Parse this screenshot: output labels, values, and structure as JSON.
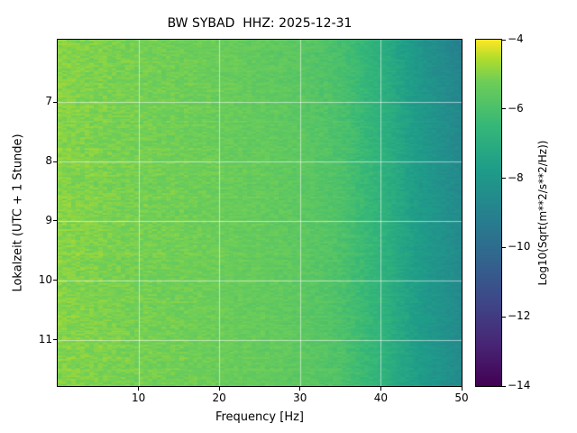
{
  "chart_data": {
    "type": "heatmap",
    "title": "BW SYBAD  HHZ: 2025-12-31",
    "xlabel": "Frequency [Hz]",
    "ylabel": "Lokalzeit (UTC + 1 Stunde)",
    "xlim": [
      0,
      50
    ],
    "x_ticks": [
      10,
      20,
      30,
      40,
      50
    ],
    "ylim": [
      5.95,
      11.78
    ],
    "y_ticks": [
      7,
      8,
      9,
      10,
      11
    ],
    "grid": true,
    "grid_color": "rgba(255,255,255,0.55)",
    "colorbar": {
      "label": "Log10(Sqrt(m**2/s**2/Hz))",
      "vmin": -14,
      "vmax": -4,
      "ticks": [
        -4,
        -6,
        -8,
        -10,
        -12,
        -14
      ]
    },
    "colormap": {
      "name": "viridis",
      "stops": [
        [
          0.0,
          "#440154"
        ],
        [
          0.13,
          "#482878"
        ],
        [
          0.25,
          "#3e4989"
        ],
        [
          0.38,
          "#31688e"
        ],
        [
          0.5,
          "#26828e"
        ],
        [
          0.63,
          "#1f9e89"
        ],
        [
          0.75,
          "#35b779"
        ],
        [
          0.88,
          "#6ece58"
        ],
        [
          0.95,
          "#b5de2b"
        ],
        [
          1.0,
          "#fde725"
        ]
      ]
    },
    "heatmap": {
      "profile_hz": [
        0,
        5,
        10,
        15,
        20,
        25,
        30,
        35,
        40,
        45,
        50
      ],
      "profile_log10": [
        -4.95,
        -5.05,
        -5.15,
        -5.2,
        -5.3,
        -5.4,
        -5.55,
        -5.9,
        -6.7,
        -7.8,
        -8.6
      ],
      "noise_log10": 0.3
    }
  }
}
